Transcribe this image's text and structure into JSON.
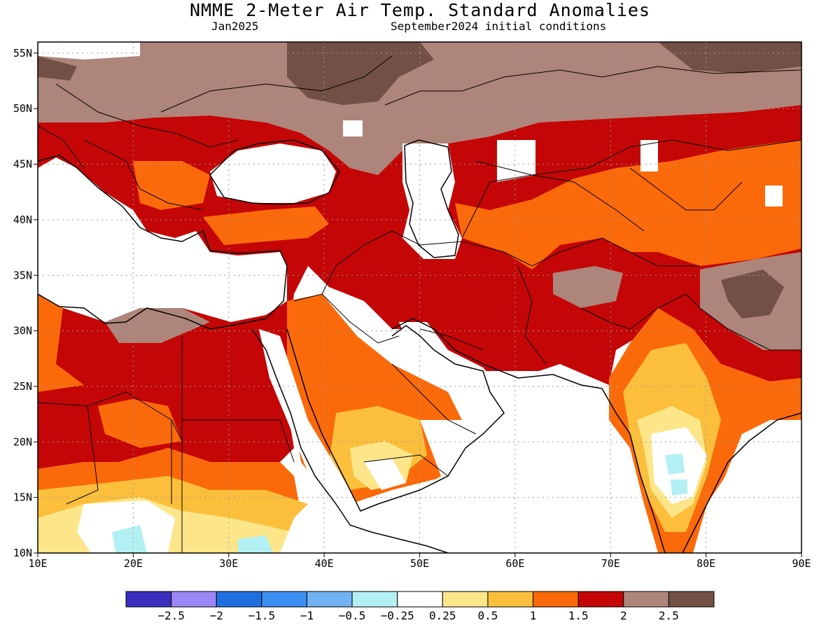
{
  "title": "NMME 2-Meter Air Temp. Standard Anomalies",
  "subtitle_left": "Jan2025",
  "subtitle_right": "September2024 initial conditions",
  "map": {
    "lon_range": [
      10,
      90
    ],
    "lat_range": [
      10,
      56
    ],
    "lon_ticks": [
      "10E",
      "20E",
      "30E",
      "40E",
      "50E",
      "60E",
      "70E",
      "80E",
      "90E"
    ],
    "lat_ticks": [
      "10N",
      "15N",
      "20N",
      "25N",
      "30N",
      "35N",
      "40N",
      "45N",
      "50N",
      "55N"
    ],
    "grid": true
  },
  "colorbar": {
    "colors": [
      "#3a2fbf",
      "#9b87f5",
      "#1f6fe0",
      "#3c8ef0",
      "#72b3f4",
      "#b3f0f3",
      "#ffffff",
      "#fde68a",
      "#fbbf3c",
      "#fb6a0a",
      "#c40606",
      "#ad857a",
      "#735046"
    ],
    "labels": [
      "-2.5",
      "-2",
      "-1.5",
      "-1",
      "-0.5",
      "-0.25",
      "0.25",
      "0.5",
      "1",
      "1.5",
      "2",
      "2.5"
    ]
  },
  "colors": {
    "land_white": "#ffffff",
    "coast": "#000000",
    "grid": "#9a9a9a"
  }
}
